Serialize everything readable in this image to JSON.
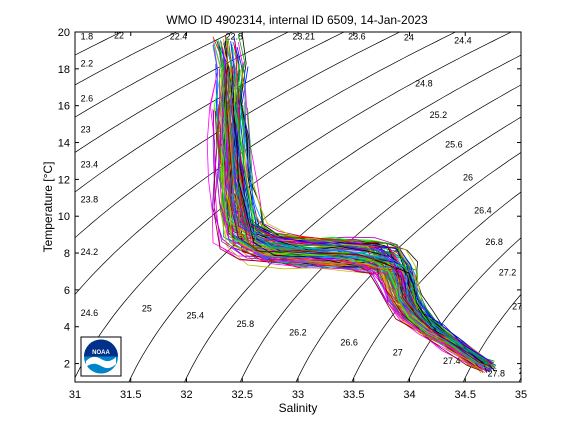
{
  "chart_data": {
    "type": "line",
    "title": "WMO ID 4902314, internal ID 6509, 14-Jan-2023",
    "xlabel": "Salinity",
    "ylabel": "Temperature [°C]",
    "xlim": [
      31,
      35
    ],
    "ylim": [
      1,
      20
    ],
    "x_ticks": [
      31,
      31.5,
      32,
      32.5,
      33,
      33.5,
      34,
      34.5,
      35
    ],
    "y_ticks": [
      2,
      4,
      6,
      8,
      10,
      12,
      14,
      16,
      18,
      20
    ],
    "grid": false,
    "legend": "none",
    "isopycnals": {
      "sigma_levels": [
        20.6,
        21,
        21.4,
        21.8,
        22.2,
        22.6,
        23,
        23.4,
        23.8,
        24.2,
        24.6,
        25,
        25.4,
        25.8,
        26.2,
        26.6,
        27,
        27.4,
        27.8,
        28.2
      ],
      "labels": [
        {
          "text": "1.8",
          "s": 31.05,
          "t": 19.75
        },
        {
          "text": "22",
          "s": 31.35,
          "t": 19.8
        },
        {
          "text": "22.4",
          "s": 31.85,
          "t": 19.75
        },
        {
          "text": "22.8",
          "s": 32.35,
          "t": 19.75
        },
        {
          "text": "23.21",
          "s": 32.95,
          "t": 19.75
        },
        {
          "text": "23.6",
          "s": 33.45,
          "t": 19.75
        },
        {
          "text": "24",
          "s": 33.95,
          "t": 19.7
        },
        {
          "text": "24.4",
          "s": 34.4,
          "t": 19.55
        },
        {
          "text": "2.2",
          "s": 31.05,
          "t": 18.3
        },
        {
          "text": "2.6",
          "s": 31.05,
          "t": 16.4
        },
        {
          "text": "23",
          "s": 31.05,
          "t": 14.7
        },
        {
          "text": "23.4",
          "s": 31.05,
          "t": 12.8
        },
        {
          "text": "23.8",
          "s": 31.05,
          "t": 10.9
        },
        {
          "text": "24.2",
          "s": 31.05,
          "t": 8.05
        },
        {
          "text": "24.6",
          "s": 31.05,
          "t": 4.75
        },
        {
          "text": "24.8",
          "s": 34.05,
          "t": 17.2
        },
        {
          "text": "25.2",
          "s": 34.18,
          "t": 15.5
        },
        {
          "text": "25.6",
          "s": 34.32,
          "t": 13.9
        },
        {
          "text": "26",
          "s": 34.48,
          "t": 12.1
        },
        {
          "text": "26.4",
          "s": 34.58,
          "t": 10.3
        },
        {
          "text": "26.8",
          "s": 34.68,
          "t": 8.6
        },
        {
          "text": "27.2",
          "s": 34.8,
          "t": 6.95
        },
        {
          "text": "27.6",
          "s": 34.92,
          "t": 5.1
        },
        {
          "text": "2",
          "s": 34.98,
          "t": 1.6
        },
        {
          "text": "25",
          "s": 31.6,
          "t": 5.0
        },
        {
          "text": "25.4",
          "s": 32.0,
          "t": 4.6
        },
        {
          "text": "25.8",
          "s": 32.45,
          "t": 4.15
        },
        {
          "text": "26.2",
          "s": 32.92,
          "t": 3.7
        },
        {
          "text": "26.6",
          "s": 33.38,
          "t": 3.15
        },
        {
          "text": "27",
          "s": 33.85,
          "t": 2.6
        },
        {
          "text": "27.4",
          "s": 34.3,
          "t": 2.15
        },
        {
          "text": "27.8",
          "s": 34.7,
          "t": 1.45
        }
      ]
    },
    "reference_profile": {
      "s": [
        32.35,
        32.4,
        32.38,
        32.4,
        32.42,
        32.45,
        32.5,
        32.7,
        33.0,
        33.3,
        33.55,
        33.75,
        33.85,
        33.9,
        33.95,
        34.05,
        34.2,
        34.4,
        34.6,
        34.7
      ],
      "t": [
        19.5,
        18.0,
        16.0,
        14.0,
        12.0,
        10.5,
        9.0,
        8.3,
        8.1,
        8.0,
        7.9,
        7.7,
        7.2,
        6.5,
        5.5,
        4.6,
        3.8,
        3.0,
        2.2,
        1.8
      ]
    },
    "profile_count": 120,
    "profile_colors": [
      "#0000ff",
      "#ff0000",
      "#00aa00",
      "#00bfbf",
      "#bf00bf",
      "#bfbf00",
      "#000000",
      "#ff7f00",
      "#7f00ff",
      "#007f7f",
      "#ff00ff",
      "#00ff00",
      "#7f7f00",
      "#0080ff",
      "#800000"
    ],
    "logo": {
      "text": "NOAA",
      "colors": [
        "#003087",
        "#0085ca",
        "#ffffff"
      ]
    }
  }
}
